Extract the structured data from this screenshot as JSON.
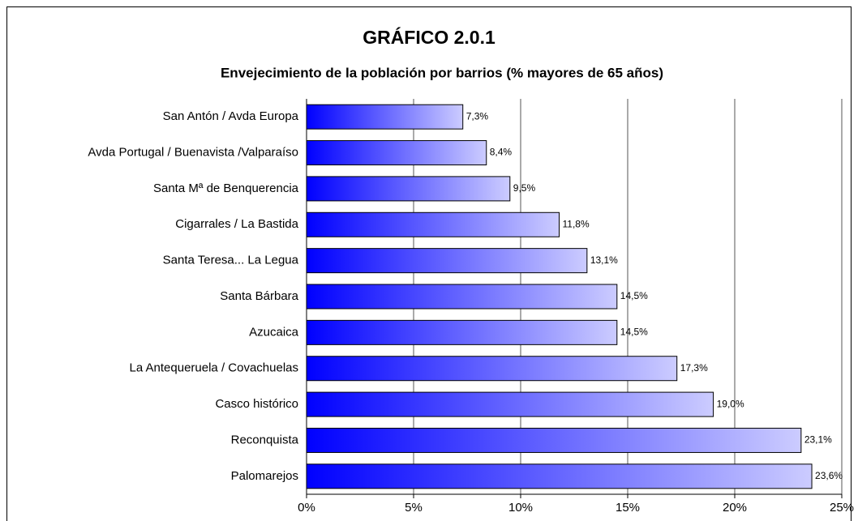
{
  "chart_data": {
    "type": "barh",
    "title": "GRÁFICO 2.0.1",
    "subtitle": "Envejecimiento de la población por barrios (% mayores de 65 años)",
    "categories": [
      "San Antón / Avda Europa",
      "Avda Portugal / Buenavista /Valparaíso",
      "Santa Mª de Benquerencia",
      "Cigarrales / La Bastida",
      "Santa Teresa... La Legua",
      "Santa Bárbara",
      "Azucaica",
      "La Antequeruela / Covachuelas",
      "Casco histórico",
      "Reconquista",
      "Palomarejos"
    ],
    "values": [
      7.3,
      8.4,
      9.5,
      11.8,
      13.1,
      14.5,
      14.5,
      17.3,
      19.0,
      23.1,
      23.6
    ],
    "value_labels": [
      "7,3%",
      "8,4%",
      "9,5%",
      "11,8%",
      "13,1%",
      "14,5%",
      "14,5%",
      "17,3%",
      "19,0%",
      "23,1%",
      "23,6%"
    ],
    "xlim": [
      0,
      25
    ],
    "xticks": [
      {
        "value": 0,
        "label": "0%"
      },
      {
        "value": 5,
        "label": "5%"
      },
      {
        "value": 10,
        "label": "10%"
      },
      {
        "value": 15,
        "label": "15%"
      },
      {
        "value": 20,
        "label": "20%"
      },
      {
        "value": 25,
        "label": "25%"
      }
    ],
    "grid": true,
    "colors": [
      "#0000ff",
      "#ccccff"
    ]
  }
}
